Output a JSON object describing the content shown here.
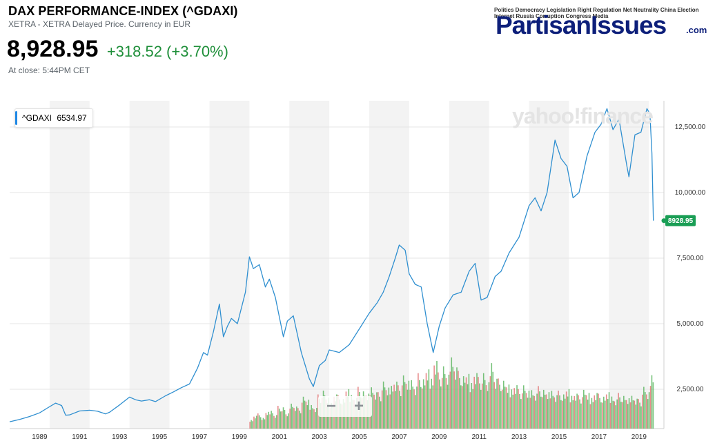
{
  "header": {
    "title": "DAX PERFORMANCE-INDEX (^GDAXI)",
    "subtitle": "XETRA - XETRA Delayed Price. Currency in EUR",
    "price": "8,928.95",
    "change": "+318.52 (+3.70%)",
    "close_note": "At close: 5:44PM CET",
    "change_color": "#1f8f3a"
  },
  "logo": {
    "main": "PartisanIssues",
    "suffix": ".com",
    "words": "Politics Democracy Legislation Right Regulation Net Neutrality China Election Internet Russia Corruption Congress Media"
  },
  "watermark": "yahoo!finance",
  "legend": {
    "symbol": "^GDAXI",
    "value": "6534.97"
  },
  "zoom": {
    "minus": "−",
    "plus": "+"
  },
  "colors": {
    "line": "#2f8fd0",
    "volume_up": "#4caf50",
    "volume_down": "#e06666",
    "band": "#f3f3f3",
    "last_label": "#1a9e55"
  },
  "chart_data": {
    "type": "line",
    "title": "DAX PERFORMANCE-INDEX (^GDAXI)",
    "x_ticks": [
      "1989",
      "1991",
      "1993",
      "1995",
      "1997",
      "1999",
      "2001",
      "2003",
      "2005",
      "2007",
      "2009",
      "2011",
      "2013",
      "2015",
      "2017",
      "2019"
    ],
    "y_ticks": [
      "2,500.00",
      "5,000.00",
      "7,500.00",
      "10,000.00",
      "12,500.00"
    ],
    "y_tick_values": [
      2500,
      5000,
      7500,
      10000,
      12500
    ],
    "ylim": [
      1000,
      13500
    ],
    "xlim": [
      1988.0,
      2020.75
    ],
    "last_value": 8928.95,
    "last_label": "8928.95",
    "series": [
      {
        "x": [
          1988.0,
          1988.5,
          1989.0,
          1989.5,
          1989.9,
          1990.3,
          1990.6,
          1990.8,
          1991.0,
          1991.5,
          1992.0,
          1992.4,
          1992.8,
          1993.0,
          1993.5,
          1994.0,
          1994.3,
          1994.6,
          1995.0,
          1995.3,
          1995.8,
          1996.2,
          1996.6,
          1997.0,
          1997.4,
          1997.7,
          1997.9,
          1998.2,
          1998.5,
          1998.7,
          1998.9,
          1999.1,
          1999.4,
          1999.8,
          2000.0,
          2000.2,
          2000.5,
          2000.8,
          2001.0,
          2001.3,
          2001.7,
          2001.9,
          2002.2,
          2002.6,
          2002.8,
          2003.0,
          2003.2,
          2003.5,
          2003.8,
          2004.0,
          2004.5,
          2005.0,
          2005.5,
          2006.0,
          2006.4,
          2006.7,
          2007.0,
          2007.3,
          2007.5,
          2007.8,
          2008.0,
          2008.3,
          2008.6,
          2008.9,
          2009.2,
          2009.5,
          2009.8,
          2010.2,
          2010.6,
          2011.0,
          2011.3,
          2011.6,
          2011.9,
          2012.3,
          2012.6,
          2013.0,
          2013.5,
          2014.0,
          2014.3,
          2014.6,
          2014.9,
          2015.3,
          2015.6,
          2015.9,
          2016.2,
          2016.5,
          2016.9,
          2017.3,
          2017.6,
          2017.9,
          2018.2,
          2018.5,
          2018.9,
          2019.0,
          2019.3,
          2019.6,
          2019.9,
          2020.05,
          2020.15,
          2020.22
        ],
        "y": [
          1260,
          1350,
          1460,
          1600,
          1790,
          1970,
          1880,
          1510,
          1520,
          1670,
          1700,
          1660,
          1560,
          1620,
          1900,
          2200,
          2100,
          2050,
          2100,
          2030,
          2250,
          2400,
          2560,
          2700,
          3300,
          3900,
          3800,
          4700,
          5750,
          4500,
          4900,
          5200,
          5000,
          6200,
          7550,
          7100,
          7250,
          6400,
          6700,
          6000,
          4500,
          5100,
          5300,
          3900,
          3400,
          2900,
          2600,
          3400,
          3600,
          4000,
          3900,
          4200,
          4800,
          5400,
          5800,
          6200,
          6800,
          7500,
          8000,
          7800,
          6900,
          6500,
          6400,
          5000,
          3900,
          4900,
          5600,
          6100,
          6200,
          7000,
          7300,
          5900,
          6000,
          6800,
          7000,
          7700,
          8300,
          9500,
          9800,
          9300,
          10000,
          12000,
          11300,
          11000,
          9800,
          10000,
          11400,
          12300,
          12600,
          13200,
          12400,
          12800,
          11000,
          10600,
          12200,
          12300,
          13200,
          13000,
          11500,
          8928.95
        ]
      }
    ],
    "volume": {
      "start_year": 2000.0,
      "end_year": 2020.25,
      "relative_heights": [
        0.12,
        0.18,
        0.2,
        0.14,
        0.22,
        0.25,
        0.19,
        0.3,
        0.28,
        0.2,
        0.35,
        0.31,
        0.27,
        0.42,
        0.38,
        0.33,
        0.29,
        0.45,
        0.5,
        0.41,
        0.36,
        0.48,
        0.44,
        0.39,
        0.52,
        0.47,
        0.43,
        0.55,
        0.49,
        0.46,
        0.58,
        0.51,
        0.48,
        0.62,
        0.54,
        0.6,
        0.66,
        0.57,
        0.7,
        0.63,
        0.68,
        0.59,
        0.73,
        0.65,
        0.78,
        0.7,
        0.95,
        0.74,
        0.82,
        0.71,
        1.0,
        0.86,
        0.76,
        0.69,
        0.72,
        0.64,
        0.78,
        0.68,
        0.73,
        0.61,
        0.92,
        0.7,
        0.66,
        0.63,
        0.58,
        0.55,
        0.61,
        0.52,
        0.57,
        0.5,
        0.54,
        0.49,
        0.56,
        0.51,
        0.48,
        0.53,
        0.47,
        0.5,
        0.45,
        0.52,
        0.46,
        0.49,
        0.44,
        0.51,
        0.47,
        0.43,
        0.5,
        0.46,
        0.42,
        0.48,
        0.45,
        0.41,
        0.47,
        0.43,
        0.4,
        0.46,
        0.42,
        0.39,
        0.55,
        0.48,
        0.75
      ]
    }
  }
}
